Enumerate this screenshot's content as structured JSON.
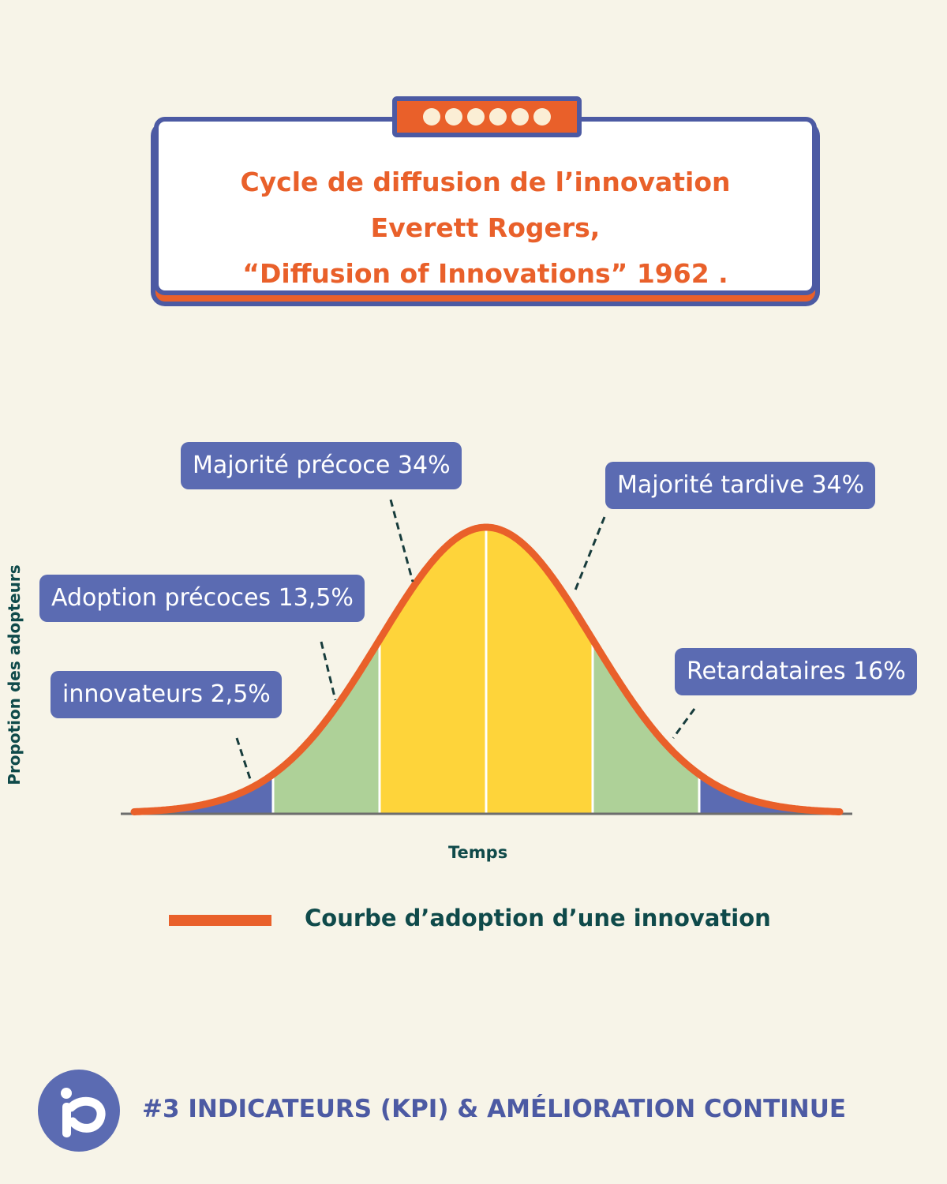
{
  "title": {
    "line1": "Cycle de diffusion de l’innovation",
    "line2": "Everett Rogers,",
    "line3": "“Diffusion of Innovations” 1962 ."
  },
  "colors": {
    "background": "#f7f4e8",
    "accent_orange": "#e9602a",
    "navy": "#4c5aa3",
    "label_blue": "#5b6bb2",
    "segment_blue": "#5b6bb2",
    "segment_green": "#aed198",
    "segment_yellow": "#fed43a",
    "text_teal": "#0f4a4a"
  },
  "chart_data": {
    "type": "area",
    "description_kind": "normal distribution bell curve divided into 6 bands",
    "xlabel": "Temps",
    "ylabel": "Propotion des adopteurs",
    "segments": [
      {
        "label": "innovateurs  2,5%",
        "color": "segment_blue"
      },
      {
        "label": "Adoption précoces 13,5%",
        "color": "segment_green"
      },
      {
        "label": "Majorité précoce 34%",
        "color": "segment_yellow"
      },
      {
        "label": "Majorité tardive 34%",
        "color": "segment_yellow"
      },
      {
        "label": "Retardataires 16%",
        "color": "segment_green"
      }
    ],
    "legend": "Courbe d’adoption d’une innovation"
  },
  "footer": {
    "text": "#3 INDICATEURS (KPI) & AMÉLIORATION CONTINUE",
    "logo_icon": "ip-logo-icon"
  }
}
